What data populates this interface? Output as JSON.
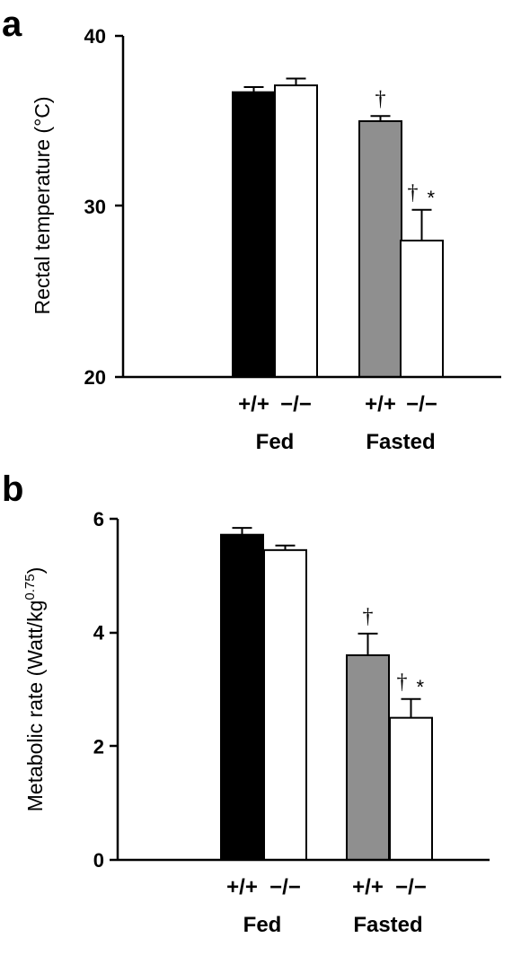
{
  "colors": {
    "black_bar": "#000000",
    "gray_bar": "#8f8f8f",
    "white_bar": "#ffffff"
  },
  "chart_data": [
    {
      "type": "bar",
      "panel": "a",
      "ylabel": "Rectal temperature (°C)",
      "ylim": [
        20,
        40
      ],
      "yticks": [
        "20",
        "30",
        "40"
      ],
      "groups": [
        "Fed",
        "Fasted"
      ],
      "genotypes": [
        "+/+",
        "−/−"
      ],
      "bars": [
        {
          "group": "Fed",
          "genotype": "+/+",
          "value": 36.7,
          "error": 0.3,
          "fill": "#000000",
          "annotation": ""
        },
        {
          "group": "Fed",
          "genotype": "−/−",
          "value": 37.1,
          "error": 0.4,
          "fill": "#ffffff",
          "annotation": ""
        },
        {
          "group": "Fasted",
          "genotype": "+/+",
          "value": 35.0,
          "error": 0.3,
          "fill": "#8f8f8f",
          "annotation": "†"
        },
        {
          "group": "Fasted",
          "genotype": "−/−",
          "value": 28.0,
          "error": 1.8,
          "fill": "#ffffff",
          "annotation": "†*"
        }
      ]
    },
    {
      "type": "bar",
      "panel": "b",
      "ylabel": "Metabolic rate (Watt/kg",
      "ylabel_sup": "0.75",
      "ylabel_close": ")",
      "ylim": [
        0,
        6
      ],
      "yticks": [
        "0",
        "2",
        "4",
        "6"
      ],
      "groups": [
        "Fed",
        "Fasted"
      ],
      "genotypes": [
        "+/+",
        "−/−"
      ],
      "bars": [
        {
          "group": "Fed",
          "genotype": "+/+",
          "value": 5.72,
          "error": 0.12,
          "fill": "#000000",
          "annotation": ""
        },
        {
          "group": "Fed",
          "genotype": "−/−",
          "value": 5.45,
          "error": 0.08,
          "fill": "#ffffff",
          "annotation": ""
        },
        {
          "group": "Fasted",
          "genotype": "+/+",
          "value": 3.6,
          "error": 0.38,
          "fill": "#8f8f8f",
          "annotation": "†"
        },
        {
          "group": "Fasted",
          "genotype": "−/−",
          "value": 2.5,
          "error": 0.33,
          "fill": "#ffffff",
          "annotation": "†*"
        }
      ]
    }
  ]
}
